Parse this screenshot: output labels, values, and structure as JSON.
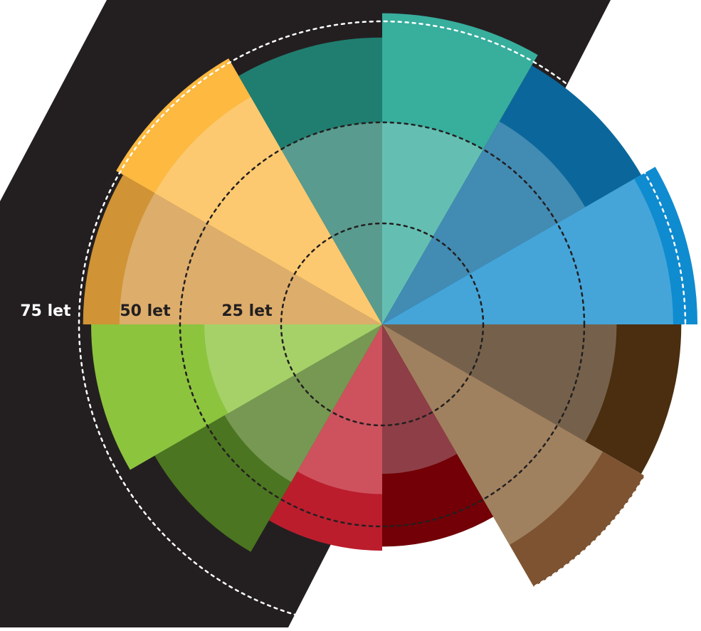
{
  "chart_data": {
    "type": "polar-area",
    "ring_labels": [
      "75 let",
      "50 let",
      "25 let"
    ],
    "ring_values": [
      75,
      50,
      25
    ],
    "sectors": [
      {
        "inner": 50,
        "outer": 77,
        "inner_color": "#64bfb2",
        "outer_color": "#38ae9d"
      },
      {
        "inner": 58,
        "outer": 74,
        "inner_color": "#428bb3",
        "outer_color": "#0b679b"
      },
      {
        "inner": 72,
        "outer": 78,
        "inner_color": "#45a5d8",
        "outer_color": "#0f8bd0"
      },
      {
        "inner": 58,
        "outer": 74,
        "inner_color": "#75614b",
        "outer_color": "#4a2e0f"
      },
      {
        "inner": 63,
        "outer": 75,
        "inner_color": "#a0815f",
        "outer_color": "#7d5331"
      },
      {
        "inner": 37,
        "outer": 55,
        "inner_color": "#8e3e46",
        "outer_color": "#720006"
      },
      {
        "inner": 42,
        "outer": 56,
        "inner_color": "#cd525d",
        "outer_color": "#bb1d2d"
      },
      {
        "inner": 45,
        "outer": 65,
        "inner_color": "#769853",
        "outer_color": "#4b7520"
      },
      {
        "inner": 44,
        "outer": 72,
        "inner_color": "#a6d169",
        "outer_color": "#8cc43e"
      },
      {
        "inner": 65,
        "outer": 74,
        "inner_color": "#dcad6b",
        "outer_color": "#d09335"
      },
      {
        "inner": 65,
        "outer": 76,
        "inner_color": "#fcc970",
        "outer_color": "#fdb940"
      },
      {
        "inner": 50,
        "outer": 71,
        "inner_color": "#5a9b8f",
        "outer_color": "#207e70"
      }
    ],
    "background": {
      "dark_band_color": "#231f20"
    },
    "grid": true,
    "legend": "none"
  }
}
